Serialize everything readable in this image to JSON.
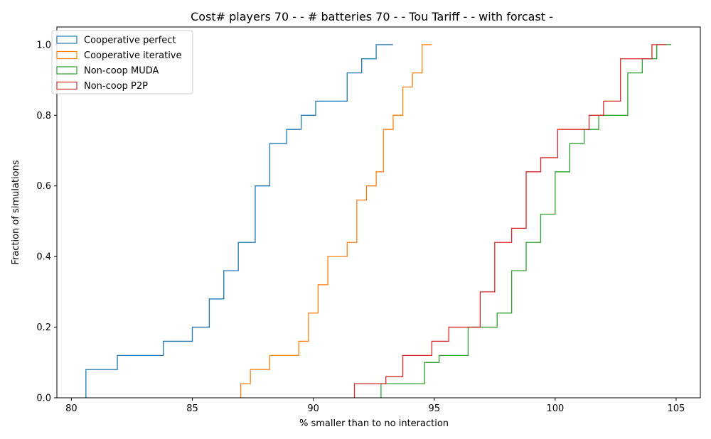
{
  "chart_data": {
    "type": "line",
    "title": "Cost# players 70 - - # batteries 70 - - Tou Tariff -  - with forcast -",
    "xlabel": "% smaller than to no interaction",
    "ylabel": "Fraction of simulations",
    "xlim": [
      79.4,
      106.0
    ],
    "ylim": [
      0.0,
      1.05
    ],
    "x_ticks": [
      80,
      85,
      90,
      95,
      100,
      105
    ],
    "y_ticks": [
      0.0,
      0.2,
      0.4,
      0.6,
      0.8,
      1.0
    ],
    "x_tick_labels": [
      "80",
      "85",
      "90",
      "95",
      "100",
      "105"
    ],
    "y_tick_labels": [
      "0.0",
      "0.2",
      "0.4",
      "0.6",
      "0.8",
      "1.0"
    ],
    "grid": false,
    "legend_position": "top-left",
    "step_style": "cumulative-step",
    "series": [
      {
        "name": "Cooperative perfect",
        "color": "#1f77b4",
        "x": [
          80.6,
          81.9,
          83.8,
          85.0,
          85.7,
          86.3,
          86.9,
          87.6,
          88.2,
          88.9,
          89.5,
          90.1,
          91.4,
          92.0,
          92.6,
          93.3
        ],
        "y": [
          0.08,
          0.12,
          0.16,
          0.2,
          0.28,
          0.36,
          0.44,
          0.6,
          0.72,
          0.76,
          0.8,
          0.84,
          0.92,
          0.96,
          1.0,
          1.0
        ]
      },
      {
        "name": "Cooperative iterative",
        "color": "#ff7f0e",
        "x": [
          87.0,
          87.4,
          88.2,
          89.4,
          89.8,
          90.2,
          90.6,
          91.4,
          91.8,
          92.2,
          92.6,
          92.9,
          93.3,
          93.7,
          94.1,
          94.5,
          94.9
        ],
        "y": [
          0.04,
          0.08,
          0.12,
          0.16,
          0.24,
          0.32,
          0.4,
          0.44,
          0.56,
          0.6,
          0.64,
          0.76,
          0.8,
          0.88,
          0.92,
          1.0,
          1.0
        ]
      },
      {
        "name": "Non-coop MUDA",
        "color": "#2ca02c",
        "x": [
          92.8,
          94.6,
          95.2,
          96.4,
          97.6,
          98.2,
          98.8,
          99.4,
          100.0,
          100.6,
          101.2,
          101.8,
          103.0,
          103.6,
          104.2,
          104.8
        ],
        "y": [
          0.04,
          0.1,
          0.12,
          0.2,
          0.24,
          0.36,
          0.44,
          0.52,
          0.64,
          0.72,
          0.76,
          0.8,
          0.92,
          0.96,
          1.0,
          1.0
        ]
      },
      {
        "name": "Non-coop P2P",
        "color": "#d62728",
        "x": [
          91.7,
          93.0,
          93.7,
          94.9,
          95.6,
          96.9,
          97.5,
          98.2,
          98.8,
          99.4,
          100.1,
          101.4,
          102.0,
          102.7,
          104.0,
          104.6
        ],
        "y": [
          0.04,
          0.06,
          0.12,
          0.16,
          0.2,
          0.3,
          0.44,
          0.48,
          0.64,
          0.68,
          0.76,
          0.8,
          0.84,
          0.96,
          1.0,
          1.0
        ]
      }
    ]
  }
}
